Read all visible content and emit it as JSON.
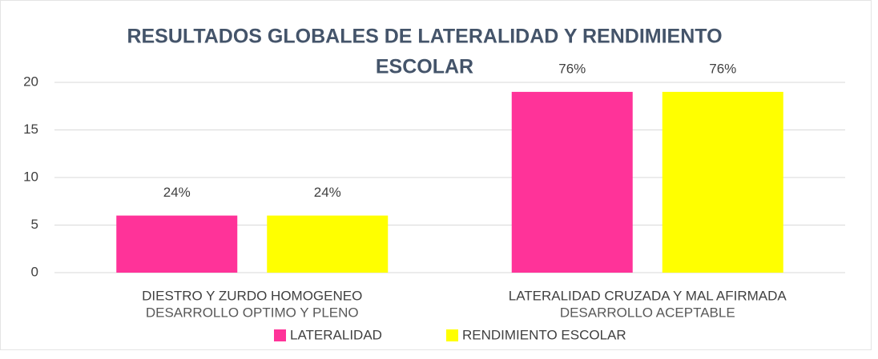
{
  "chart_data": {
    "type": "bar",
    "title": [
      "RESULTADOS GLOBALES DE LATERALIDAD Y RENDIMIENTO",
      "ESCOLAR"
    ],
    "categories": [
      "DIESTRO Y ZURDO HOMOGENEO",
      "LATERALIDAD CRUZADA Y MAL AFIRMADA"
    ],
    "subcategories": [
      "DESARROLLO OPTIMO Y PLENO",
      "DESARROLLO ACEPTABLE"
    ],
    "series": [
      {
        "name": "LATERALIDAD",
        "color": "#ff3399",
        "values": [
          6,
          19
        ],
        "annotations": [
          "24%",
          "76%"
        ]
      },
      {
        "name": "RENDIMIENTO ESCOLAR",
        "color": "#ffff00",
        "values": [
          6,
          19
        ],
        "annotations": [
          "24%",
          "76%"
        ]
      }
    ],
    "ylim": [
      0,
      20
    ],
    "yticks": [
      0,
      5,
      10,
      15,
      20
    ],
    "grid": true,
    "legend": "bottom"
  }
}
